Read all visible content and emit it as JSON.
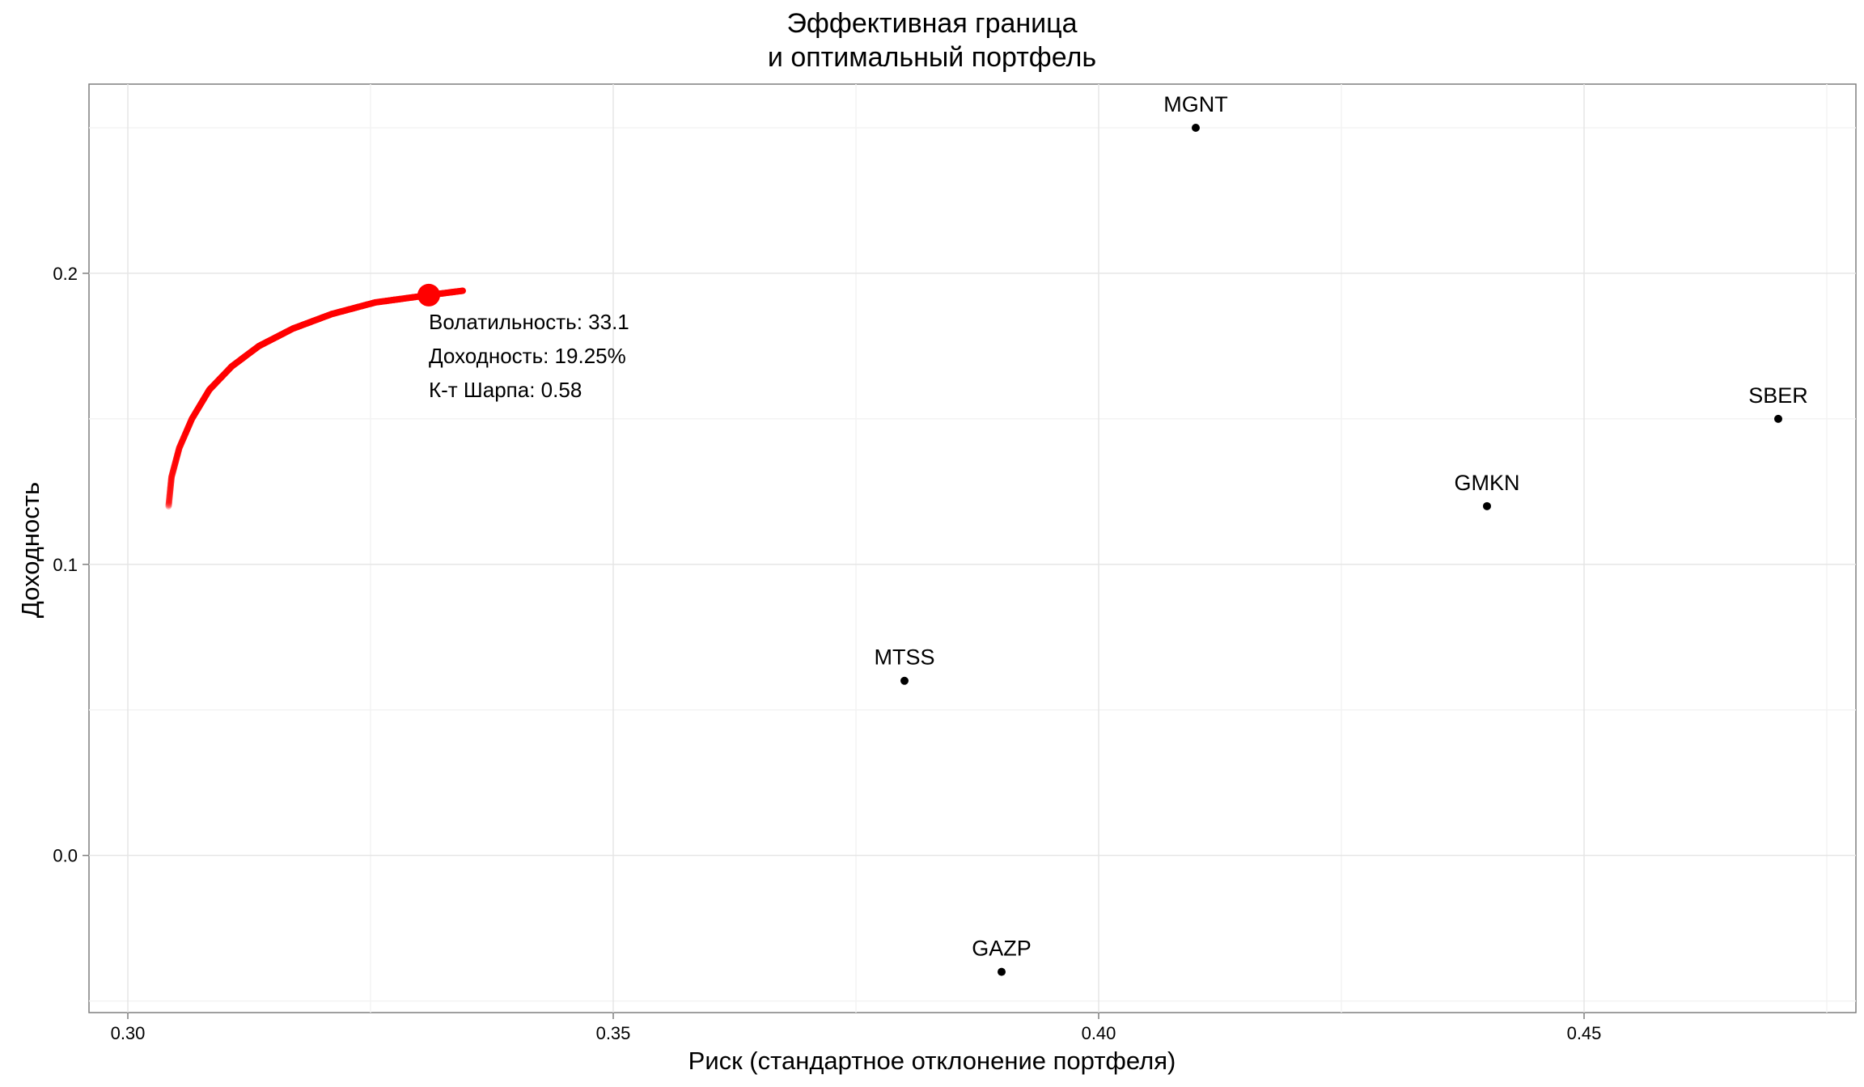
{
  "chart_data": {
    "type": "scatter",
    "title_lines": [
      "Эффективная граница",
      "и оптимальный портфель"
    ],
    "xlabel": "Риск (стандартное отклонение портфеля)",
    "ylabel": "Доходность",
    "xlim": [
      0.296,
      0.478
    ],
    "ylim": [
      -0.054,
      0.265
    ],
    "x_ticks": [
      {
        "value": 0.3,
        "label": "0.30"
      },
      {
        "value": 0.35,
        "label": "0.35"
      },
      {
        "value": 0.4,
        "label": "0.40"
      },
      {
        "value": 0.45,
        "label": "0.45"
      }
    ],
    "y_ticks": [
      {
        "value": 0.0,
        "label": "0.0"
      },
      {
        "value": 0.1,
        "label": "0.1"
      },
      {
        "value": 0.2,
        "label": "0.2"
      }
    ],
    "grid": true,
    "assets": [
      {
        "label": "MGNT",
        "x": 0.41,
        "y": 0.25
      },
      {
        "label": "SBER",
        "x": 0.47,
        "y": 0.15
      },
      {
        "label": "GMKN",
        "x": 0.44,
        "y": 0.12
      },
      {
        "label": "MTSS",
        "x": 0.38,
        "y": 0.06
      },
      {
        "label": "GAZP",
        "x": 0.39,
        "y": -0.04
      }
    ],
    "frontier": {
      "color": "#ff0000",
      "points": [
        {
          "x": 0.3042,
          "y": 0.12
        },
        {
          "x": 0.3045,
          "y": 0.13
        },
        {
          "x": 0.3053,
          "y": 0.14
        },
        {
          "x": 0.3066,
          "y": 0.15
        },
        {
          "x": 0.3084,
          "y": 0.16
        },
        {
          "x": 0.3107,
          "y": 0.168
        },
        {
          "x": 0.3135,
          "y": 0.175
        },
        {
          "x": 0.317,
          "y": 0.181
        },
        {
          "x": 0.321,
          "y": 0.186
        },
        {
          "x": 0.3255,
          "y": 0.19
        },
        {
          "x": 0.331,
          "y": 0.1925
        },
        {
          "x": 0.3345,
          "y": 0.194
        }
      ]
    },
    "optimal": {
      "x": 0.331,
      "y": 0.1925,
      "color": "#ff0000"
    },
    "annotation": [
      "Волатильность: 33.1",
      "Доходность: 19.25%",
      "К-т Шарпа: 0.58"
    ]
  }
}
